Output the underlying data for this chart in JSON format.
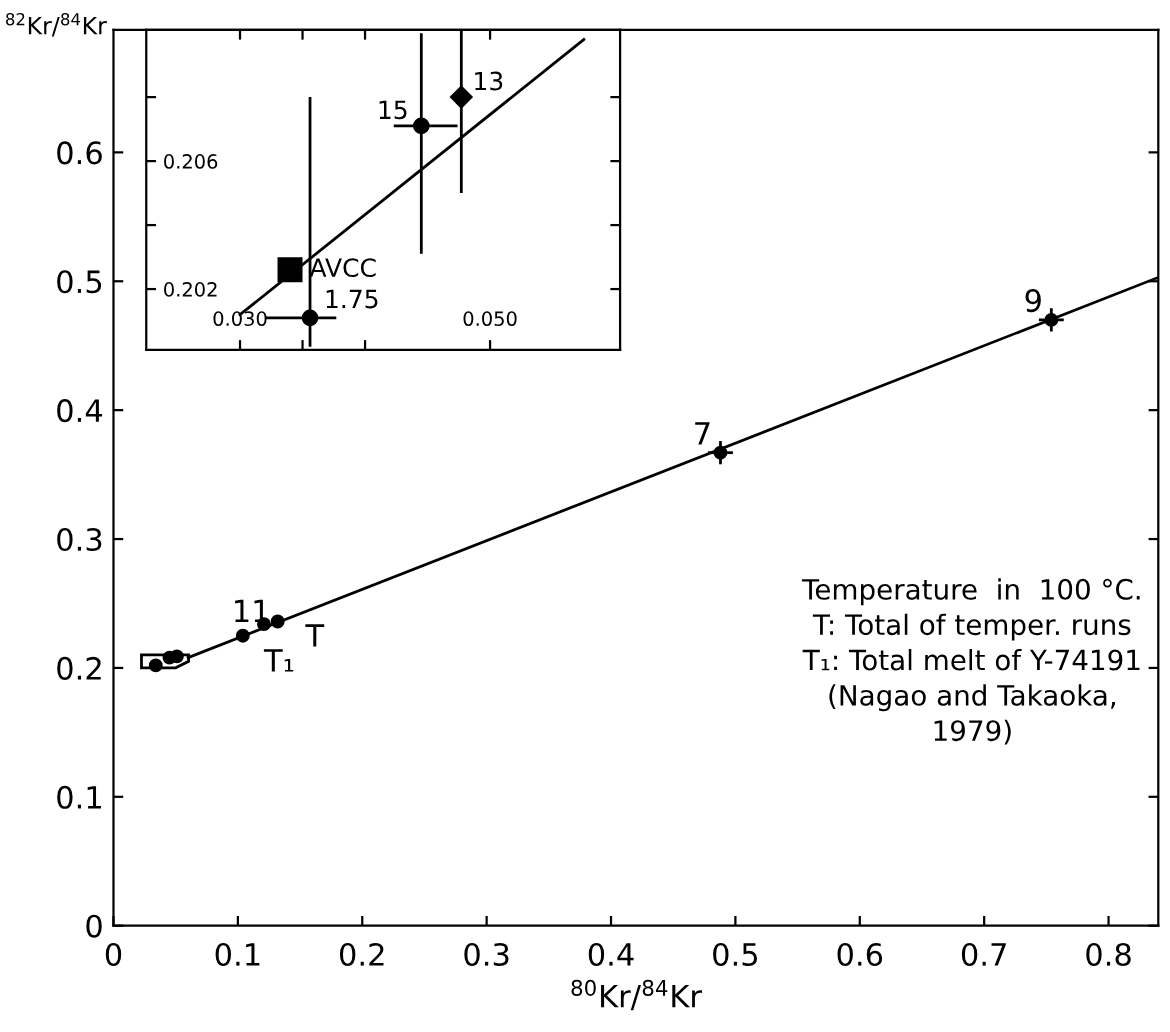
{
  "chart_data": [
    {
      "type": "scatter",
      "xlabel": "$^{80}$Kr/$^{84}$Kr",
      "ylabel": "$^{82}$Kr/$^{84}$Kr",
      "xlim": [
        0,
        0.84
      ],
      "ylim": [
        0,
        0.695
      ],
      "xticks": [
        0,
        0.1,
        0.2,
        0.3,
        0.4,
        0.5,
        0.6,
        0.7,
        0.8
      ],
      "yticks": [
        0,
        0.1,
        0.2,
        0.3,
        0.4,
        0.5,
        0.6
      ],
      "grid": false,
      "series": [
        {
          "type": "line",
          "color": "#000000",
          "x": [
            0.06,
            0.84
          ],
          "values": [
            0.208,
            0.503
          ],
          "marker": "none"
        },
        {
          "color": "#000000",
          "marker": "circle",
          "x": [
            0.034,
            0.045,
            0.051,
            0.104,
            0.121,
            0.132,
            0.488,
            0.754
          ],
          "values": [
            0.202,
            0.208,
            0.209,
            0.225,
            0.234,
            0.236,
            0.367,
            0.47
          ],
          "errors": [
            null,
            null,
            null,
            null,
            null,
            null,
            0.009,
            0.009
          ],
          "xerrors": [
            null,
            null,
            null,
            null,
            null,
            null,
            0.01,
            0.01
          ]
        }
      ],
      "annotations": [
        {
          "text": "9",
          "x": 0.754,
          "y": 0.47
        },
        {
          "text": "7",
          "x": 0.488,
          "y": 0.367
        },
        {
          "text": "11",
          "x": 0.104,
          "y": 0.225
        },
        {
          "text": "T₁",
          "x": 0.121,
          "y": 0.234
        },
        {
          "text": "T",
          "x": 0.132,
          "y": 0.236
        },
        "Temperature  in  100 °C.\nT: Total of temper. runs\nT₁: Total melt of Y-74191\n(Nagao and Takaoka,\n1979)"
      ]
    },
    {
      "type": "scatter",
      "xlim": [
        0.0225,
        0.0604
      ],
      "ylim": [
        0.2001,
        0.2101
      ],
      "xticks": [
        {
          "value": 0.03,
          "label": "0.030"
        },
        {
          "value": 0.035,
          "label": null
        },
        {
          "value": 0.04,
          "label": null
        },
        {
          "value": 0.05,
          "label": "0.050"
        }
      ],
      "yticks": [
        {
          "value": 0.202,
          "label": "0.202"
        },
        {
          "value": 0.204,
          "label": null
        },
        {
          "value": 0.206,
          "label": "0.206"
        },
        {
          "value": 0.208,
          "label": null
        }
      ],
      "grid": false,
      "series": [
        {
          "type": "line",
          "color": "#000000",
          "x": [
            0.03,
            0.0575
          ],
          "values": [
            0.2012,
            0.2098
          ],
          "marker": "none"
        },
        {
          "color": "#000000",
          "marker": "square",
          "x": [
            0.034
          ],
          "values": [
            0.2026
          ]
        },
        {
          "color": "#000000",
          "marker": "circle",
          "x": [
            0.0356,
            0.0445
          ],
          "values": [
            0.2011,
            0.2071
          ],
          "errors": [
            [
              0.2002,
              0.208
            ],
            [
              0.2031,
              0.21
            ]
          ],
          "xerrors": [
            [
              0.032,
              0.0377
            ],
            [
              0.0423,
              0.0474
            ]
          ]
        },
        {
          "color": "#000000",
          "marker": "diamond",
          "x": [
            0.0477
          ],
          "values": [
            0.208
          ],
          "errors": [
            [
              0.205,
              0.2101
            ]
          ]
        }
      ],
      "annotations": [
        {
          "text": "AVCC",
          "x": 0.034,
          "y": 0.2026
        },
        {
          "text": "1.75",
          "x": 0.0356,
          "y": 0.2011
        },
        {
          "text": "15",
          "x": 0.0445,
          "y": 0.2071
        },
        {
          "text": "13",
          "x": 0.0477,
          "y": 0.208
        }
      ]
    }
  ]
}
